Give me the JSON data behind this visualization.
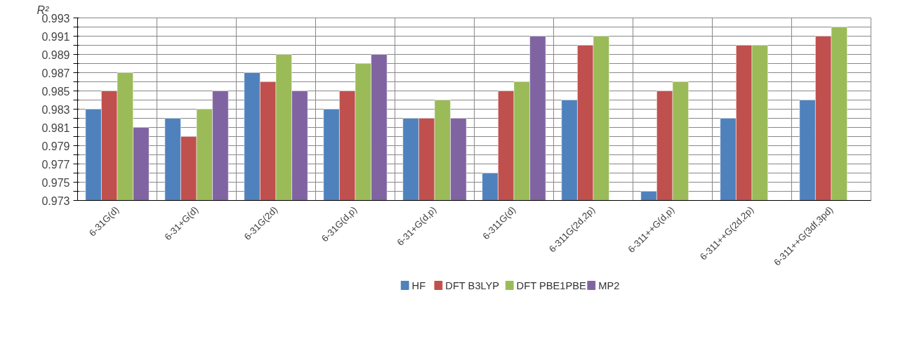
{
  "chart_data": {
    "type": "bar",
    "ylabel": "R²",
    "categories": [
      "6-31G(d)",
      "6-31+G(d)",
      "6-31G(2d)",
      "6-31G(d,p)",
      "6-31+G(d,p)",
      "6-311G(d)",
      "6-311G(2d,2p)",
      "6-311++G(d,p)",
      "6-311++G(2d,2p)",
      "6-311++G(3df,3pd)"
    ],
    "series": [
      {
        "name": "HF",
        "color": "#4f81bd",
        "values": [
          0.983,
          0.982,
          0.987,
          0.983,
          0.982,
          0.976,
          0.984,
          0.974,
          0.982,
          0.984
        ]
      },
      {
        "name": "DFT B3LYP",
        "color": "#c0504d",
        "values": [
          0.985,
          0.98,
          0.986,
          0.985,
          0.982,
          0.985,
          0.99,
          0.985,
          0.99,
          0.991
        ]
      },
      {
        "name": "DFT PBE1PBE",
        "color": "#9bbb59",
        "values": [
          0.987,
          0.983,
          0.989,
          0.988,
          0.984,
          0.986,
          0.991,
          0.986,
          0.99,
          0.992
        ]
      },
      {
        "name": "MP2",
        "color": "#8064a2",
        "values": [
          0.981,
          0.985,
          0.985,
          0.989,
          0.982,
          0.991,
          null,
          null,
          null,
          null
        ]
      }
    ],
    "ylim": [
      0.973,
      0.993
    ],
    "yticks": [
      0.973,
      {
        "value": 0.974,
        "label": null
      },
      0.975,
      {
        "value": 0.976,
        "label": null
      },
      0.977,
      {
        "value": 0.978,
        "label": null
      },
      0.979,
      {
        "value": 0.98,
        "label": null
      },
      0.981,
      {
        "value": 0.982,
        "label": null
      },
      0.983,
      {
        "value": 0.984,
        "label": null
      },
      0.985,
      {
        "value": 0.986,
        "label": null
      },
      0.987,
      {
        "value": 0.988,
        "label": null
      },
      0.989,
      {
        "value": 0.99,
        "label": null
      },
      0.991,
      {
        "value": 0.992,
        "label": null
      },
      0.993
    ],
    "grid": true,
    "legend": "bottom"
  }
}
